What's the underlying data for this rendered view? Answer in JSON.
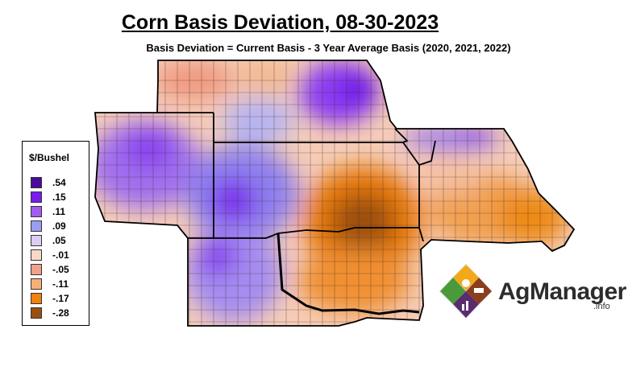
{
  "title": "Corn Basis Deviation, 08-30-2023",
  "subtitle": "Basis Deviation = Current Basis - 3 Year Average Basis (2020, 2021, 2022)",
  "legend": {
    "title": "$/Bushel",
    "items": [
      {
        "label": ".54",
        "color": "#4a0a9e"
      },
      {
        "label": ".15",
        "color": "#7a1cf0"
      },
      {
        "label": ".11",
        "color": "#a55af2"
      },
      {
        "label": ".09",
        "color": "#9a9ef2"
      },
      {
        "label": ".05",
        "color": "#dccdf4"
      },
      {
        "label": "-.01",
        "color": "#f8d8c8"
      },
      {
        "label": "-.05",
        "color": "#f3a08a"
      },
      {
        "label": "-.11",
        "color": "#f7b07a"
      },
      {
        "label": "-.17",
        "color": "#f08010"
      },
      {
        "label": "-.28",
        "color": "#9c5010"
      }
    ]
  },
  "logo": {
    "name": "AgManager",
    "suffix": ".info"
  },
  "colors": {
    "border": "#000000",
    "county_line": "#3a2a2a"
  }
}
